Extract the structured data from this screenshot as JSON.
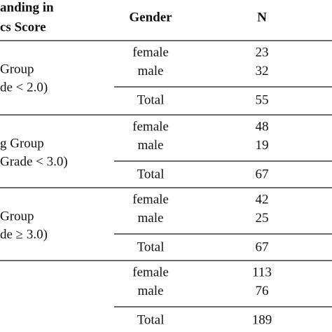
{
  "header": {
    "group": [
      "anding in",
      "cs Score"
    ],
    "gender": "Gender",
    "n": "N"
  },
  "groups": [
    {
      "label": [
        "Group",
        "de < 2.0)"
      ],
      "rows": [
        {
          "gender": "female",
          "n": 23
        },
        {
          "gender": "male",
          "n": 32
        }
      ],
      "total": {
        "label": "Total",
        "n": 55
      }
    },
    {
      "label": [
        "g Group",
        "Grade < 3.0)"
      ],
      "rows": [
        {
          "gender": "female",
          "n": 48
        },
        {
          "gender": "male",
          "n": 19
        }
      ],
      "total": {
        "label": "Total",
        "n": 67
      }
    },
    {
      "label": [
        "Group",
        "de ≥ 3.0)"
      ],
      "rows": [
        {
          "gender": "female",
          "n": 42
        },
        {
          "gender": "male",
          "n": 25
        }
      ],
      "total": {
        "label": "Total",
        "n": 67
      }
    },
    {
      "label": [],
      "rows": [
        {
          "gender": "female",
          "n": 113
        },
        {
          "gender": "male",
          "n": 76
        }
      ],
      "total": {
        "label": "Total",
        "n": 189
      }
    }
  ]
}
